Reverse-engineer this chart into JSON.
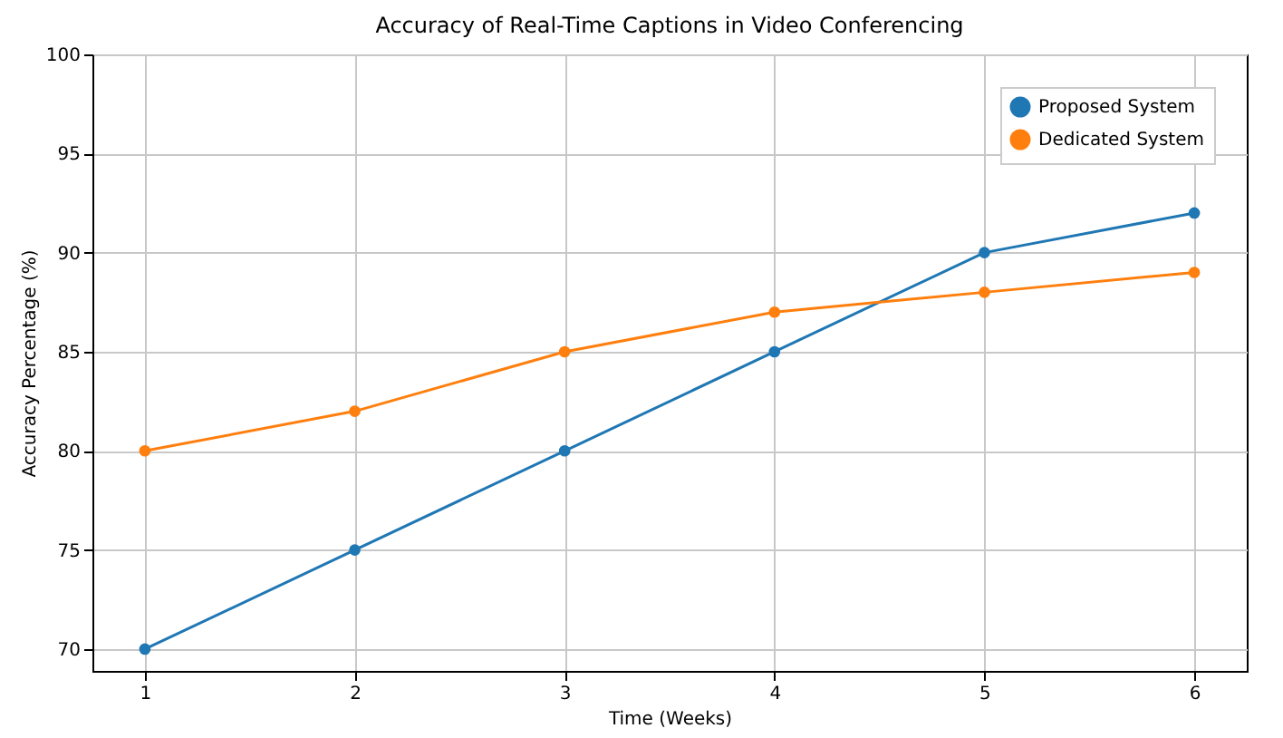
{
  "chart_data": {
    "type": "line",
    "title": "Accuracy of Real-Time Captions in Video Conferencing",
    "xlabel": "Time (Weeks)",
    "ylabel": "Accuracy Percentage (%)",
    "x": [
      1,
      2,
      3,
      4,
      5,
      6
    ],
    "series": [
      {
        "name": "Proposed System",
        "color": "#1f77b4",
        "values": [
          70,
          75,
          80,
          85,
          90,
          92
        ]
      },
      {
        "name": "Dedicated System",
        "color": "#ff7f0e",
        "values": [
          80,
          82,
          85,
          87,
          88,
          89
        ]
      }
    ],
    "xlim": [
      0.75,
      6.25
    ],
    "xticks": [
      1,
      2,
      3,
      4,
      5,
      6
    ],
    "ylim": [
      68.9,
      100
    ],
    "yticks": [
      70,
      75,
      80,
      85,
      90,
      95,
      100
    ],
    "grid": true,
    "legend": "top right",
    "marker": "circle",
    "line_style": "solid"
  }
}
